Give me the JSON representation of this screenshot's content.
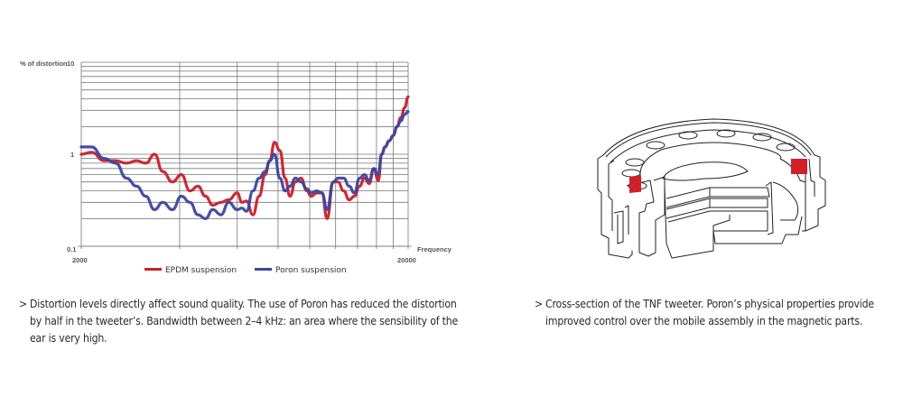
{
  "chart_data": {
    "type": "line",
    "title": "",
    "ylabel": "% of distortion",
    "xlabel": "Frequency",
    "x_scale": "log",
    "y_scale": "log",
    "xlim": [
      2000,
      20000
    ],
    "ylim": [
      0.1,
      10
    ],
    "x_tick_labels": [
      "2000",
      "20000"
    ],
    "y_tick_labels": [
      "10",
      "1",
      "0.1"
    ],
    "x_gridlines": [
      2000,
      4000,
      6000,
      8000,
      10000,
      12000,
      14000,
      16000,
      18000,
      20000
    ],
    "y_gridlines": [
      0.1,
      0.2,
      0.3,
      0.4,
      0.5,
      0.6,
      0.7,
      0.8,
      0.9,
      1,
      2,
      3,
      4,
      5,
      6,
      7,
      8,
      9,
      10
    ],
    "grid": true,
    "legend_position": "bottom",
    "series": [
      {
        "name": "EPDM suspension",
        "color": "#c8202c",
        "x": [
          2000,
          2150,
          2350,
          2550,
          2750,
          2950,
          3150,
          3350,
          3550,
          3800,
          4050,
          4300,
          4550,
          4800,
          5050,
          5350,
          5650,
          6000,
          6200,
          6400,
          6700,
          7000,
          7300,
          7550,
          7800,
          8100,
          8400,
          8700,
          9050,
          9400,
          9800,
          10100,
          10500,
          10900,
          11300,
          11800,
          12200,
          12700,
          13200,
          13700,
          14200,
          14700,
          15200,
          15700,
          16200,
          16600,
          17000,
          17500,
          18000,
          18500,
          19000,
          19500,
          20000
        ],
        "values": [
          1.0,
          1.05,
          0.85,
          0.85,
          0.8,
          0.85,
          0.8,
          1.0,
          0.65,
          0.5,
          0.6,
          0.4,
          0.45,
          0.35,
          0.28,
          0.3,
          0.32,
          0.38,
          0.3,
          0.31,
          0.22,
          0.35,
          0.6,
          0.85,
          1.35,
          1.1,
          0.55,
          0.35,
          0.5,
          0.55,
          0.4,
          0.35,
          0.38,
          0.38,
          0.2,
          0.5,
          0.5,
          0.4,
          0.32,
          0.35,
          0.45,
          0.55,
          0.48,
          0.7,
          0.52,
          1.0,
          1.2,
          1.4,
          1.6,
          2.0,
          2.5,
          3.2,
          4.2
        ]
      },
      {
        "name": "Poron suspension",
        "color": "#3b46a0",
        "x": [
          2000,
          2150,
          2350,
          2550,
          2750,
          2950,
          3150,
          3350,
          3550,
          3800,
          4050,
          4300,
          4550,
          4800,
          5050,
          5350,
          5650,
          6000,
          6200,
          6400,
          6700,
          7000,
          7300,
          7550,
          7800,
          8100,
          8400,
          8700,
          9050,
          9400,
          9800,
          10100,
          10500,
          10900,
          11300,
          11800,
          12200,
          12700,
          13200,
          13700,
          14200,
          14700,
          15200,
          15700,
          16200,
          16600,
          17000,
          17500,
          18000,
          18500,
          19000,
          19500,
          20000
        ],
        "values": [
          1.2,
          1.2,
          0.9,
          0.8,
          0.55,
          0.45,
          0.35,
          0.25,
          0.3,
          0.25,
          0.35,
          0.3,
          0.22,
          0.2,
          0.25,
          0.22,
          0.3,
          0.25,
          0.26,
          0.24,
          0.4,
          0.55,
          0.65,
          0.85,
          1.0,
          0.55,
          0.4,
          0.45,
          0.55,
          0.5,
          0.42,
          0.38,
          0.4,
          0.38,
          0.25,
          0.5,
          0.55,
          0.55,
          0.45,
          0.38,
          0.55,
          0.6,
          0.52,
          0.7,
          0.6,
          1.0,
          1.2,
          1.4,
          1.6,
          2.0,
          2.3,
          2.7,
          2.9
        ]
      }
    ]
  },
  "chart": {
    "y_axis_label": "% of distortion",
    "y_ticks": {
      "top": "10",
      "mid": "1",
      "bottom": "0.1"
    },
    "x_ticks": {
      "left": "2000",
      "right": "20000"
    },
    "x_axis_label": "Frequency",
    "legend": [
      {
        "label": "EPDM suspension",
        "color": "#c8202c"
      },
      {
        "label": "Poron suspension",
        "color": "#3b46a0"
      }
    ]
  },
  "captions": {
    "left": {
      "marker": ">",
      "text": "Distortion levels directly affect sound quality. The use of Poron has reduced the distortion by half in the tweeter’s. Bandwidth between 2–4 kHz: an area where the sensibility of the ear is very high."
    },
    "right": {
      "marker": ">",
      "text": "Cross-section of the TNF tweeter. Poron’s physical properties provide improved control over the mobile assembly in the magnetic parts."
    }
  },
  "illustration": {
    "subject": "TNF tweeter cross-section",
    "highlight_color": "#d0202a"
  }
}
